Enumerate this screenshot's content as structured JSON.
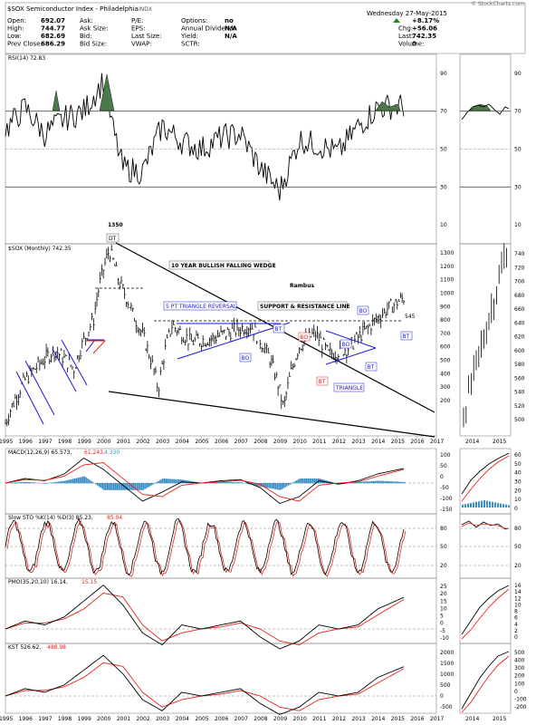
{
  "header": {
    "title": "$SOX Semiconductor Index - Philadelphia",
    "exchange": "INDX",
    "credit": "© StockCharts.com",
    "date": "Wednesday 27-May-2015",
    "quote": [
      {
        "label": "Open:",
        "value": "692.07"
      },
      {
        "label": "High:",
        "value": "744.77"
      },
      {
        "label": "Low:",
        "value": "682.69"
      },
      {
        "label": "Prev Close:",
        "value": "686.29"
      }
    ],
    "mid1": [
      {
        "label": "Ask:",
        "value": ""
      },
      {
        "label": "Ask Size:",
        "value": ""
      },
      {
        "label": "Bid:",
        "value": ""
      },
      {
        "label": "Bid Size:",
        "value": ""
      }
    ],
    "mid2": [
      {
        "label": "P/E:",
        "value": ""
      },
      {
        "label": "EPS:",
        "value": ""
      },
      {
        "label": "Last Size:",
        "value": ""
      },
      {
        "label": "VWAP:",
        "value": ""
      }
    ],
    "mid3": [
      {
        "label": "Options:",
        "value": "no"
      },
      {
        "label": "Annual Dividend:",
        "value": "N/A"
      },
      {
        "label": "Yield:",
        "value": "N/A"
      },
      {
        "label": "SCTR:",
        "value": ""
      }
    ],
    "right": [
      {
        "label": "",
        "value": "+8.17%"
      },
      {
        "label": "Chg:",
        "value": "+56.06"
      },
      {
        "label": "Last:",
        "value": "742.35"
      },
      {
        "label": "Volume:",
        "value": "0"
      }
    ]
  },
  "panels": {
    "rsi": {
      "label": "RSI(14) 72.83",
      "ticks": [
        "90",
        "70",
        "50",
        "30",
        "10"
      ]
    },
    "price": {
      "label": "$SOX (Monthly) 742.35",
      "ticks": [
        "1300",
        "1200",
        "1100",
        "1000",
        "900",
        "800",
        "700",
        "600",
        "500",
        "400",
        "300",
        "200"
      ],
      "right_ticks": [
        "740",
        "720",
        "700",
        "680",
        "660",
        "640",
        "620",
        "600",
        "580",
        "560",
        "540",
        "520",
        "500"
      ]
    },
    "macd": {
      "label": "MACD(12,26,9) 65.573,",
      "v2": "61.243,",
      "v3": "4.330",
      "ticks": [
        "100",
        "50",
        "0",
        "-50",
        "-100",
        "-150"
      ],
      "right_ticks": [
        "60",
        "50",
        "40",
        "30",
        "20",
        "10",
        "0"
      ]
    },
    "sto": {
      "label": "Slow STO %K(14) %D(3) 85.23,",
      "v2": "85.04",
      "ticks": [
        "80",
        "50",
        "20"
      ]
    },
    "pmo": {
      "label": "PMO(35,20,10) 16.14,",
      "v2": "15.15",
      "ticks": [
        "25",
        "20",
        "15",
        "10",
        "5",
        "0",
        "-5",
        "-10"
      ],
      "right_ticks": [
        "16",
        "14",
        "12",
        "10",
        "8",
        "6",
        "4",
        "2",
        "0"
      ]
    },
    "kst": {
      "label": "KST 526.62,",
      "v2": "488.98",
      "ticks": [
        "2000",
        "1500",
        "1000",
        "500",
        "0",
        "-500"
      ],
      "right_ticks": [
        "500",
        "400",
        "300",
        "200",
        "100",
        "0",
        "-100",
        "-200"
      ]
    }
  },
  "x_axis": {
    "years": [
      "1995",
      "1996",
      "1997",
      "1998",
      "1999",
      "2000",
      "2001",
      "2002",
      "2003",
      "2004",
      "2005",
      "2006",
      "2007",
      "2008",
      "2009",
      "2010",
      "2011",
      "2012",
      "2013",
      "2014",
      "2015",
      "2016",
      "2017"
    ],
    "mini_years": [
      "2014",
      "2015"
    ]
  },
  "annotations": {
    "peak": "1350",
    "dt": "DT",
    "wedge": "10 YEAR BULLISH FALLING WEDGE",
    "author": "Rambus",
    "triangle5": "5 PT TRIANGLE REVERSAL",
    "sr_line": "SUPPORT & RESISTANCE LINE",
    "bt": "BT",
    "bo": "BO",
    "triangle": "TRIANGLE",
    "level545": "545"
  },
  "colors": {
    "price": "#000000",
    "signal": "#e8221c",
    "trend_blue": "#1a1adc",
    "hist": "#3a8fc4",
    "overbought": "#4a7a4a",
    "grid": "#999999"
  },
  "chart_data": [
    {
      "type": "line",
      "title": "$SOX (Monthly) 742.35",
      "x": [
        1995.0,
        1996.0,
        1997.5,
        1998.5,
        1999.5,
        2000.3,
        2000.8,
        2001.5,
        2002.8,
        2003.5,
        2004.5,
        2005.5,
        2006.5,
        2007.5,
        2008.5,
        2009.2,
        2010.0,
        2010.8,
        2011.5,
        2012.5,
        2013.5,
        2014.5,
        2015.4
      ],
      "y": [
        150,
        260,
        380,
        300,
        560,
        1350,
        900,
        600,
        230,
        520,
        420,
        440,
        480,
        520,
        340,
        180,
        400,
        470,
        360,
        390,
        500,
        640,
        742
      ],
      "ylim": [
        150,
        1350
      ]
    },
    {
      "type": "line",
      "title": "RSI(14) 72.83",
      "x": [
        1995,
        1996,
        1997,
        1998,
        1999,
        2000,
        2000.5,
        2001,
        2002,
        2003,
        2004,
        2005,
        2006,
        2007,
        2008,
        2009,
        2010,
        2011,
        2012,
        2013,
        2014,
        2015.4
      ],
      "y": [
        60,
        72,
        58,
        66,
        70,
        86,
        60,
        40,
        38,
        62,
        54,
        50,
        56,
        58,
        40,
        28,
        55,
        52,
        48,
        62,
        72,
        72.83
      ],
      "ylim": [
        0,
        100
      ]
    },
    {
      "type": "line",
      "title": "MACD(12,26,9)",
      "series": [
        {
          "name": "MACD",
          "values": [
            0,
            20,
            10,
            40,
            110,
            60,
            -10,
            -80,
            -40,
            5,
            0,
            10,
            15,
            -20,
            -90,
            -60,
            10,
            -5,
            10,
            40,
            65.573
          ]
        },
        {
          "name": "Signal",
          "values": [
            0,
            15,
            12,
            30,
            80,
            90,
            20,
            -50,
            -60,
            -10,
            0,
            5,
            12,
            -5,
            -60,
            -80,
            -10,
            0,
            5,
            30,
            61.243
          ]
        }
      ],
      "x": [
        1995,
        1996,
        1997,
        1998,
        1999,
        2000,
        2001,
        2002,
        2003,
        2004,
        2005,
        2006,
        2007,
        2008,
        2009,
        2010,
        2011,
        2012,
        2013,
        2014,
        2015.4
      ]
    },
    {
      "type": "line",
      "title": "PMO(35,20,10)",
      "series": [
        {
          "name": "PMO",
          "values": [
            0,
            4,
            2,
            6,
            14,
            22,
            12,
            -2,
            -8,
            2,
            0,
            2,
            4,
            -4,
            -10,
            -6,
            2,
            0,
            2,
            10,
            16.14
          ]
        },
        {
          "name": "Signal",
          "values": [
            0,
            3,
            3,
            5,
            10,
            18,
            16,
            2,
            -6,
            -2,
            0,
            1,
            3,
            0,
            -6,
            -8,
            -2,
            0,
            1,
            7,
            15.15
          ]
        }
      ],
      "x": [
        1995,
        1996,
        1997,
        1998,
        1999,
        2000,
        2001,
        2002,
        2003,
        2004,
        2005,
        2006,
        2007,
        2008,
        2009,
        2010,
        2011,
        2012,
        2013,
        2014,
        2015.4
      ]
    }
  ]
}
